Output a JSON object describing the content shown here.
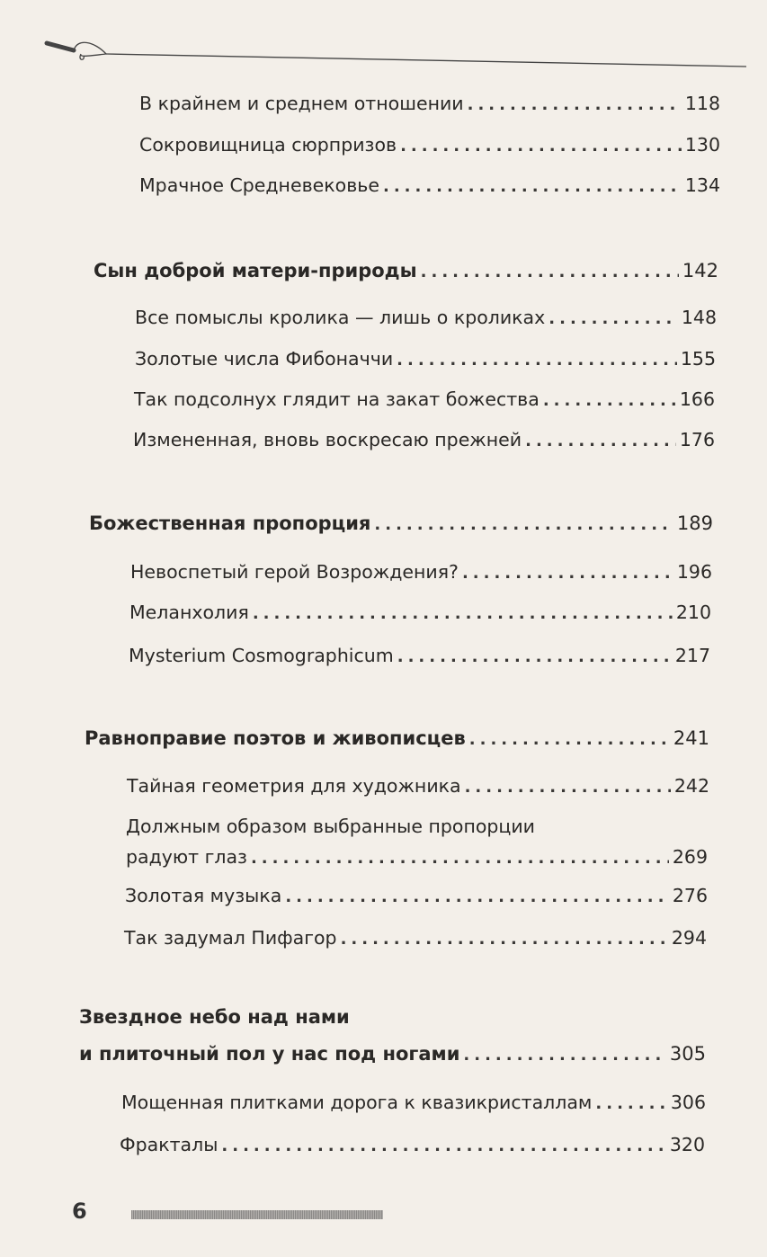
{
  "page_number": "6",
  "entries": [
    {
      "level": "sub",
      "text": "В крайнем и среднем отношении",
      "page": "118"
    },
    {
      "level": "sub",
      "text": "Сокровищница сюрпризов",
      "page": "130"
    },
    {
      "level": "sub",
      "text": "Мрачное Средневековье",
      "page": "134"
    },
    {
      "level": "chapter",
      "text": "Сын доброй матери-природы",
      "page": "142"
    },
    {
      "level": "sub",
      "text": "Все помыслы кролика — лишь о кроликах",
      "page": "148"
    },
    {
      "level": "sub",
      "text": "Золотые числа Фибоначчи",
      "page": "155"
    },
    {
      "level": "sub",
      "text": "Так подсолнух глядит на закат божества",
      "page": "166"
    },
    {
      "level": "sub",
      "text": "Измененная, вновь воскресаю прежней",
      "page": "176"
    },
    {
      "level": "chapter",
      "text": "Божественная пропорция",
      "page": "189"
    },
    {
      "level": "sub",
      "text": "Невоспетый герой Возрождения?",
      "page": "196"
    },
    {
      "level": "sub",
      "text": "Меланхолия",
      "page": "210"
    },
    {
      "level": "sub",
      "text": "Mysterium Cosmographicum",
      "page": "217"
    },
    {
      "level": "chapter",
      "text": "Равноправие поэтов и живописцев",
      "page": "241"
    },
    {
      "level": "sub",
      "text": "Тайная геометрия для художника",
      "page": "242"
    },
    {
      "level": "sub",
      "text_line1": "Должным образом выбранные пропорции",
      "text": "радуют глаз",
      "page": "269"
    },
    {
      "level": "sub",
      "text": "Золотая музыка",
      "page": "276"
    },
    {
      "level": "sub",
      "text": "Так задумал Пифагор",
      "page": "294"
    },
    {
      "level": "chapter",
      "text_line1": "Звездное небо над нами",
      "text": "и плиточный пол у нас под ногами",
      "page": "305"
    },
    {
      "level": "sub",
      "text": "Мощенная плитками дорога к квазикристаллам",
      "page": "306"
    },
    {
      "level": "sub",
      "text": "Фракталы",
      "page": "320"
    }
  ]
}
